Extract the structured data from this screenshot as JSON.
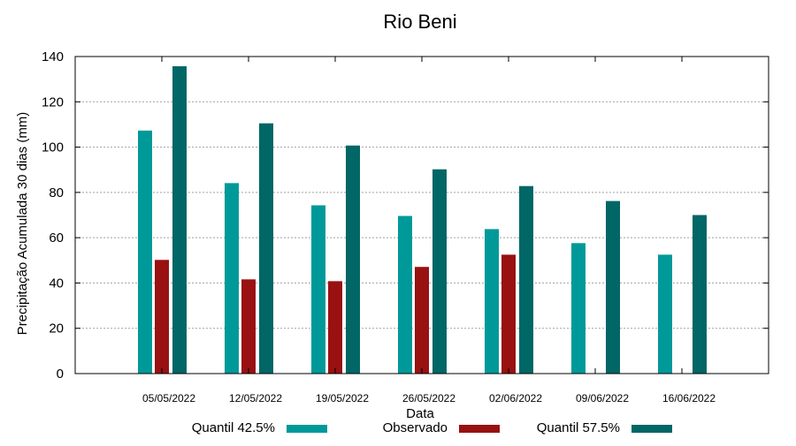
{
  "chart_data": {
    "type": "bar",
    "title": "Rio Beni",
    "xlabel": "Data",
    "ylabel": "Precipitação Acumulada 30 dias (mm)",
    "ylim": [
      0,
      140
    ],
    "yticks": [
      0,
      20,
      40,
      60,
      80,
      100,
      120,
      140
    ],
    "grid": true,
    "legend_placement": "bottom",
    "categories": [
      "05/05/2022",
      "12/05/2022",
      "19/05/2022",
      "26/05/2022",
      "02/06/2022",
      "09/06/2022",
      "16/06/2022"
    ],
    "series": [
      {
        "name": "Quantil 42.5%",
        "color": "#009999",
        "values": [
          107.3,
          84.1,
          74.3,
          69.6,
          63.8,
          57.6,
          52.5
        ]
      },
      {
        "name": "Observado",
        "color": "#991111",
        "values": [
          50.2,
          41.6,
          40.8,
          47.1,
          52.5,
          null,
          null
        ]
      },
      {
        "name": "Quantil 57.5%",
        "color": "#006666",
        "values": [
          135.7,
          110.5,
          100.7,
          90.2,
          82.8,
          76.2,
          70.0
        ]
      }
    ]
  }
}
